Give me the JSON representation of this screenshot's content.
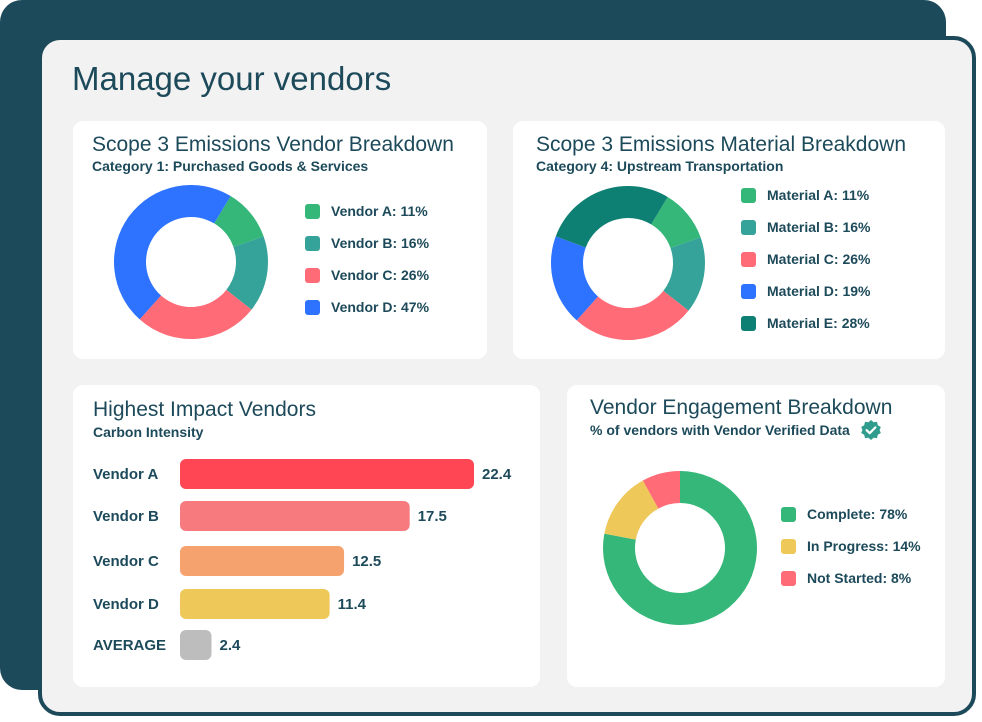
{
  "page": {
    "title": "Manage your vendors"
  },
  "vendor_breakdown": {
    "title": "Scope 3 Emissions Vendor Breakdown",
    "subtitle": "Category 1: Purchased Goods & Services"
  },
  "material_breakdown": {
    "title": "Scope 3 Emissions Material Breakdown",
    "subtitle": "Category 4: Upstream Transportation"
  },
  "impact_vendors": {
    "title": "Highest Impact Vendors",
    "subtitle": "Carbon Intensity"
  },
  "engagement": {
    "title": "Vendor Engagement Breakdown",
    "subtitle": "% of vendors with Vendor Verified Data",
    "verified_icon": "check-badge-icon"
  },
  "chart_data": [
    {
      "id": "vendor",
      "type": "pie",
      "title": "Scope 3 Emissions Vendor Breakdown",
      "subtitle": "Category 1: Purchased Goods & Services",
      "donut": true,
      "categories": [
        "Vendor A",
        "Vendor B",
        "Vendor C",
        "Vendor D"
      ],
      "values": [
        11,
        16,
        26,
        47
      ],
      "legend_labels": [
        "Vendor A: 11%",
        "Vendor B: 16%",
        "Vendor C: 26%",
        "Vendor D: 47%"
      ],
      "colors": [
        "#35b779",
        "#35a39a",
        "#ff6b77",
        "#2d73ff"
      ],
      "legend": "right"
    },
    {
      "id": "material",
      "type": "pie",
      "title": "Scope 3 Emissions Material Breakdown",
      "subtitle": "Category 4: Upstream Transportation",
      "donut": true,
      "categories": [
        "Material A",
        "Material B",
        "Material C",
        "Material D",
        "Material E"
      ],
      "values": [
        11,
        16,
        26,
        19,
        28
      ],
      "legend_labels": [
        "Material A: 11%",
        "Material B: 16%",
        "Material C: 26%",
        "Material D: 19%",
        "Material E: 28%"
      ],
      "colors": [
        "#35b779",
        "#35a39a",
        "#ff6b77",
        "#2d73ff",
        "#0e8073"
      ],
      "legend": "right"
    },
    {
      "id": "impact",
      "type": "bar",
      "orientation": "horizontal",
      "title": "Highest Impact Vendors",
      "subtitle": "Carbon Intensity",
      "categories": [
        "Vendor A",
        "Vendor B",
        "Vendor C",
        "Vendor D",
        "AVERAGE"
      ],
      "values": [
        22.4,
        17.5,
        12.5,
        11.4,
        2.4
      ],
      "value_labels": [
        "22.4",
        "17.5",
        "12.5",
        "11.4",
        "2.4"
      ],
      "colors": [
        "#ff4655",
        "#f77b7e",
        "#f5a26e",
        "#efc85a",
        "#bdbdbd"
      ],
      "grid": false
    },
    {
      "id": "engagement",
      "type": "pie",
      "title": "Vendor Engagement Breakdown",
      "subtitle": "% of vendors with Vendor Verified Data",
      "donut": true,
      "categories": [
        "Complete",
        "In Progress",
        "Not Started"
      ],
      "values": [
        78,
        14,
        8
      ],
      "legend_labels": [
        "Complete: 78%",
        "In Progress: 14%",
        "Not Started: 8%"
      ],
      "colors": [
        "#35b779",
        "#efc85a",
        "#ff6b77"
      ],
      "legend": "right"
    }
  ]
}
